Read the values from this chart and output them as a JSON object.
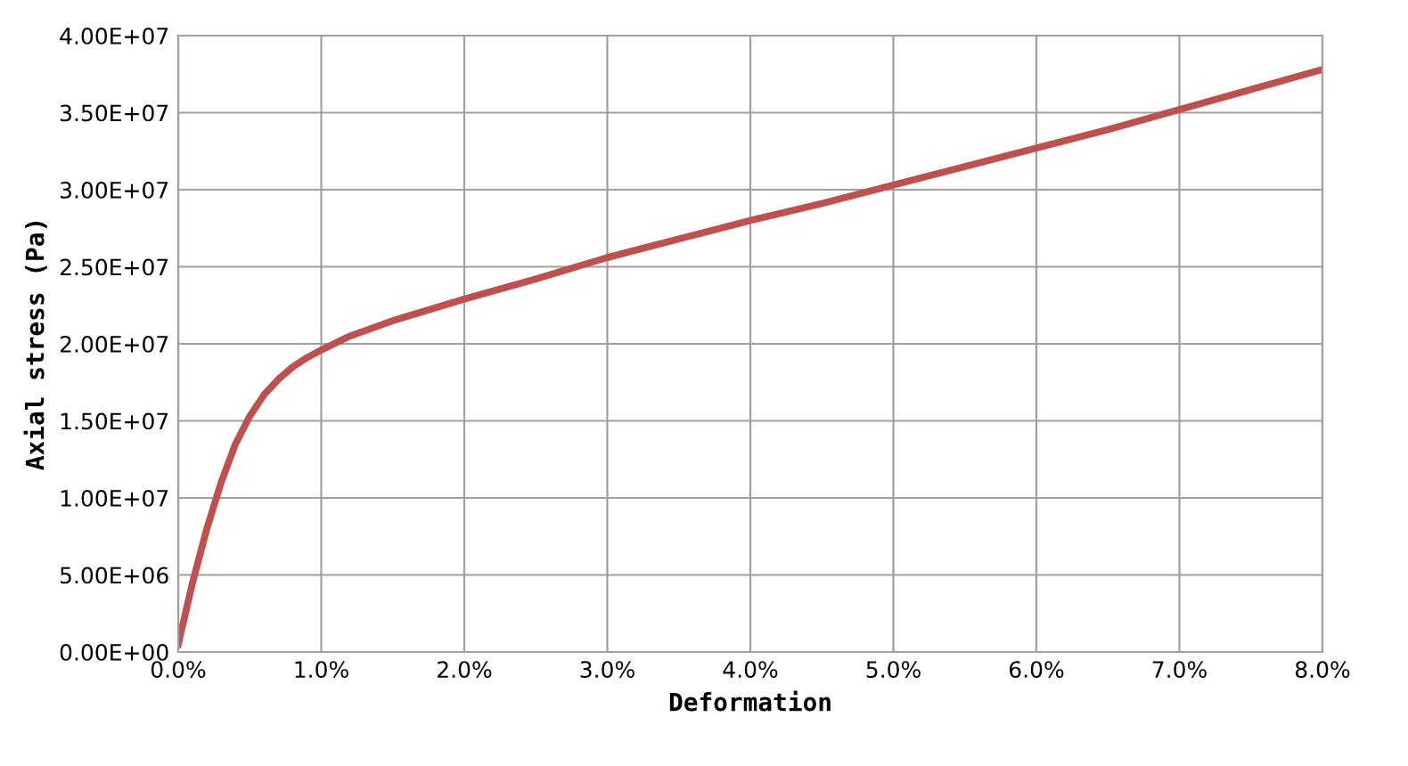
{
  "chart_data": {
    "type": "line",
    "xlabel": "Deformation",
    "ylabel": "Axial stress (Pa)",
    "series": [
      {
        "color": "#c0504d",
        "x": [
          0,
          0.1,
          0.2,
          0.3,
          0.4,
          0.5,
          0.6,
          0.7,
          0.8,
          0.9,
          1.0,
          1.2,
          1.5,
          2.0,
          2.5,
          3.0,
          3.5,
          4.0,
          4.5,
          5.0,
          5.5,
          6.0,
          6.5,
          7.0,
          7.5,
          8.0
        ],
        "values": [
          500000,
          4500000,
          8000000,
          11000000,
          13500000,
          15300000,
          16700000,
          17700000,
          18500000,
          19100000,
          19600000,
          20500000,
          21500000,
          22900000,
          24200000,
          25600000,
          26800000,
          28000000,
          29100000,
          30300000,
          31500000,
          32700000,
          33900000,
          35200000,
          36500000,
          37800000
        ]
      }
    ],
    "xlim": [
      0,
      8
    ],
    "ylim": [
      0,
      40000000
    ],
    "xticks": [
      {
        "value": 0,
        "label": "0.0%"
      },
      {
        "value": 1,
        "label": "1.0%"
      },
      {
        "value": 2,
        "label": "2.0%"
      },
      {
        "value": 3,
        "label": "3.0%"
      },
      {
        "value": 4,
        "label": "4.0%"
      },
      {
        "value": 5,
        "label": "5.0%"
      },
      {
        "value": 6,
        "label": "6.0%"
      },
      {
        "value": 7,
        "label": "7.0%"
      },
      {
        "value": 8,
        "label": "8.0%"
      }
    ],
    "yticks": [
      {
        "value": 0,
        "label": "0.00E+00"
      },
      {
        "value": 5000000,
        "label": "5.00E+06"
      },
      {
        "value": 10000000,
        "label": "1.00E+07"
      },
      {
        "value": 15000000,
        "label": "1.50E+07"
      },
      {
        "value": 20000000,
        "label": "2.00E+07"
      },
      {
        "value": 25000000,
        "label": "2.50E+07"
      },
      {
        "value": 30000000,
        "label": "3.00E+07"
      },
      {
        "value": 35000000,
        "label": "3.50E+07"
      },
      {
        "value": 40000000,
        "label": "4.00E+07"
      }
    ],
    "grid": true,
    "marker": "none",
    "line_style": "solid"
  }
}
